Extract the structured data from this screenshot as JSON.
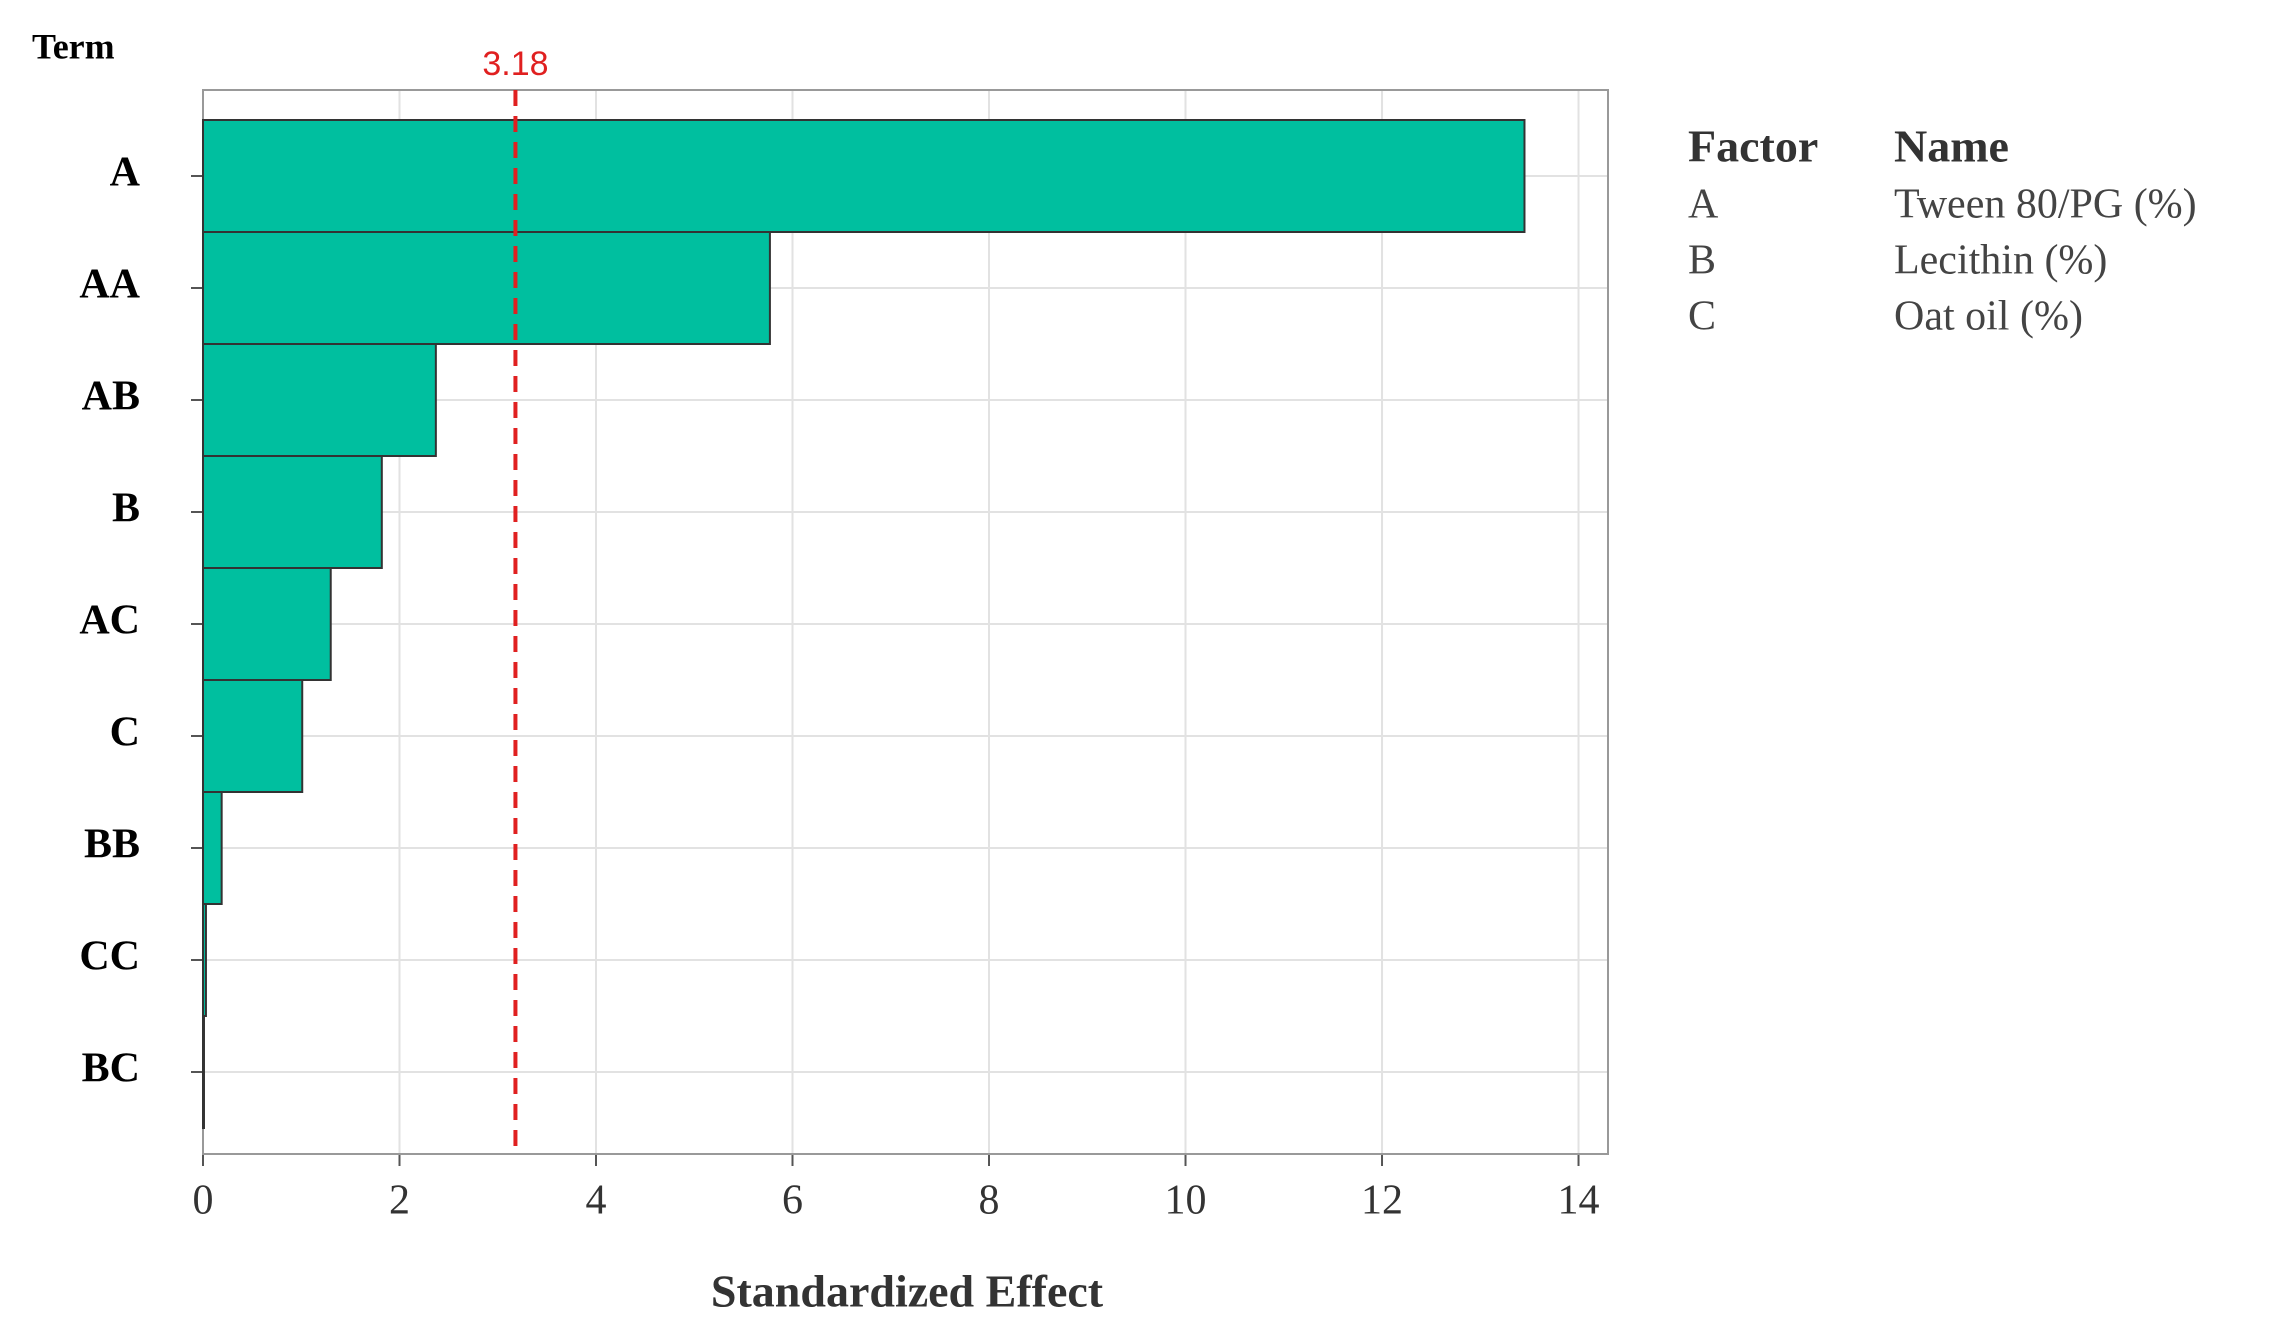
{
  "chart_data": {
    "type": "bar",
    "orientation": "horizontal",
    "y_label": "Term",
    "x_label": "Standardized Effect",
    "categories": [
      "A",
      "AA",
      "AB",
      "B",
      "AC",
      "C",
      "BB",
      "CC",
      "BC"
    ],
    "values": [
      13.45,
      5.77,
      2.37,
      1.82,
      1.3,
      1.01,
      0.19,
      0.03,
      0.01
    ],
    "color": "#00bf9f",
    "xlim": [
      0,
      14.3
    ],
    "xticks": [
      0,
      2,
      4,
      6,
      8,
      10,
      12,
      14
    ],
    "grid": true,
    "reference_line": 3.18,
    "reference_color": "#e02020",
    "factor_table": {
      "columns": [
        "Factor",
        "Name"
      ],
      "rows": [
        [
          "A",
          "Tween 80/PG (%)"
        ],
        [
          "B",
          "Lecithin (%)"
        ],
        [
          "C",
          "Oat oil (%)"
        ]
      ]
    }
  }
}
